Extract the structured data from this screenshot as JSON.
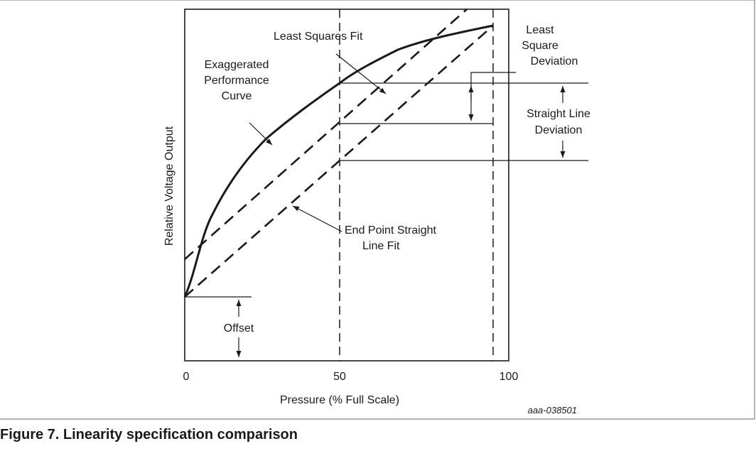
{
  "axes": {
    "ylabel": "Relative Voltage Output",
    "xlabel": "Pressure (% Full Scale)",
    "x_ticks": [
      "0",
      "50",
      "100"
    ]
  },
  "labels": {
    "least_squares_fit": "Least Squares Fit",
    "exaggerated_curve": [
      "Exaggerated",
      "Performance",
      "Curve"
    ],
    "least_square_deviation": [
      "Least",
      "Square",
      "Deviation"
    ],
    "straight_line_deviation": [
      "Straight Line",
      "Deviation"
    ],
    "end_point_fit": [
      "End Point Straight",
      "Line Fit"
    ],
    "offset": "Offset"
  },
  "figure_id": "aaa-038501",
  "caption": "Figure 7.  Linearity specification comparison",
  "colors": {
    "stroke": "#1a1a1a",
    "frame": "#9a9a9a"
  }
}
